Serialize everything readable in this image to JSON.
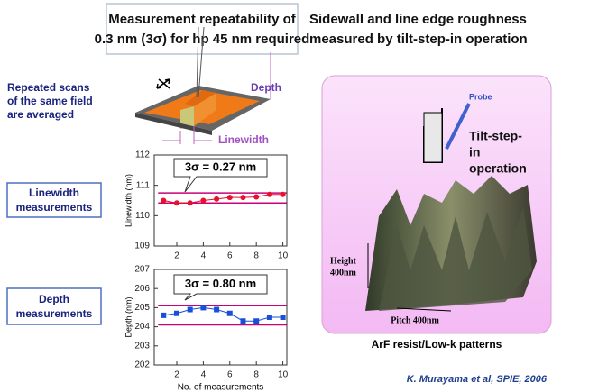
{
  "left_title": [
    "Measurement repeatability of",
    "0.3 nm (3σ) for hp 45 nm required"
  ],
  "right_title": [
    "Sidewall and line edge roughness",
    "measured by tilt-step-in operation"
  ],
  "scan_note": [
    "Repeated scans",
    "of the same field",
    "are averaged"
  ],
  "linewidth_label": [
    "Linewidth",
    "measurements"
  ],
  "depth_label": [
    "Depth",
    "measurements"
  ],
  "diagram_labels": {
    "depth": "Depth",
    "linewidth": "Linewidth"
  },
  "afm": {
    "probe": "Probe",
    "operation": [
      "Tilt-step-",
      "in",
      "operation"
    ],
    "height": [
      "Height",
      "400nm"
    ],
    "pitch": "Pitch 400nm",
    "caption": "ArF resist/Low-k patterns"
  },
  "citation": "K. Murayama et al, SPIE, 2006",
  "chart_data": [
    {
      "type": "line",
      "ylabel": "Linewidth (nm)",
      "annotation": "3σ = 0.27 nm",
      "x": [
        1,
        2,
        3,
        4,
        5,
        6,
        7,
        8,
        9,
        10
      ],
      "values": [
        110.5,
        110.42,
        110.42,
        110.5,
        110.55,
        110.6,
        110.6,
        110.62,
        110.7,
        110.7
      ],
      "color": "#e8102a",
      "marker": "circle",
      "reference_lines": [
        110.75,
        110.42
      ],
      "reference_color": "#cc0077",
      "xlim": [
        0.3,
        10.3
      ],
      "xticks": [
        2,
        4,
        6,
        8,
        10
      ],
      "ylim": [
        109,
        112
      ],
      "yticks": [
        109,
        110,
        111,
        112
      ]
    },
    {
      "type": "line",
      "ylabel": "Depth (nm)",
      "xlabel": "No. of measurements",
      "annotation": "3σ = 0.80 nm",
      "x": [
        1,
        2,
        3,
        4,
        5,
        6,
        7,
        8,
        9,
        10
      ],
      "values": [
        204.6,
        204.7,
        204.9,
        205,
        204.9,
        204.7,
        204.3,
        204.3,
        204.5,
        204.5
      ],
      "color": "#1a4fd8",
      "marker": "square",
      "reference_lines": [
        205.1,
        204.1
      ],
      "reference_color": "#cc0077",
      "xlim": [
        0.3,
        10.3
      ],
      "xticks": [
        2,
        4,
        6,
        8,
        10
      ],
      "ylim": [
        202,
        207
      ],
      "yticks": [
        202,
        203,
        204,
        205,
        206,
        207
      ]
    }
  ]
}
